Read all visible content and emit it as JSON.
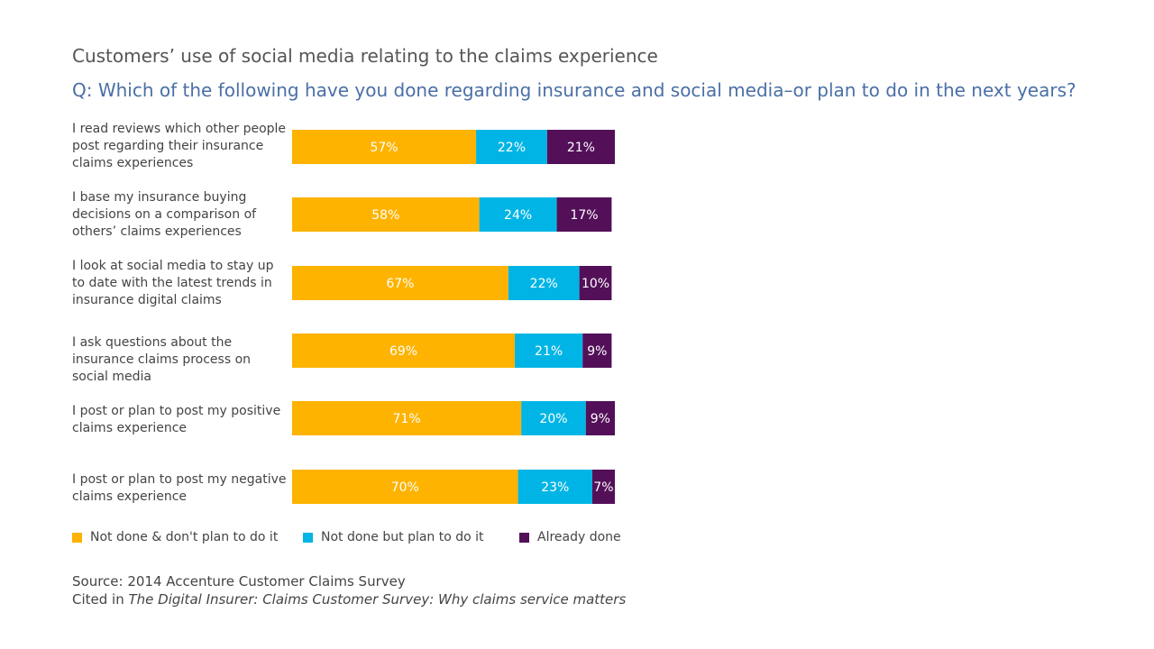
{
  "chart_data": {
    "type": "bar",
    "orientation": "horizontal",
    "stacked": true,
    "title": "Customers’ use of social media relating to the claims experience",
    "subtitle": "Q: Which of the following have you done regarding insurance and social media–or plan to do in the next years?",
    "categories": [
      "I read reviews which other people post regarding their insurance claims experiences",
      "I base my insurance buying decisions on a comparison of others’ claims experiences",
      "I look at social media to stay up to date with the latest trends in insurance digital claims",
      "I ask questions about the insurance claims process on social media",
      "I post or plan to post my positive claims experience",
      "I post or plan to post my negative claims experience"
    ],
    "series": [
      {
        "name": "Not done & don't plan to do it",
        "color": "#fdb300",
        "values": [
          57,
          58,
          67,
          69,
          71,
          70
        ]
      },
      {
        "name": "Not done but plan to do it",
        "color": "#00b5e5",
        "values": [
          22,
          24,
          22,
          21,
          20,
          23
        ]
      },
      {
        "name": "Already done",
        "color": "#531059",
        "values": [
          21,
          17,
          10,
          9,
          9,
          7
        ]
      }
    ],
    "value_suffix": "%",
    "xlim": [
      0,
      100
    ],
    "legend_position": "bottom"
  },
  "footer": {
    "source": "Source: 2014 Accenture Customer Claims Survey",
    "cited_prefix": "Cited in ",
    "cited_title": "The Digital Insurer: Claims Customer Survey: Why claims service matters"
  }
}
